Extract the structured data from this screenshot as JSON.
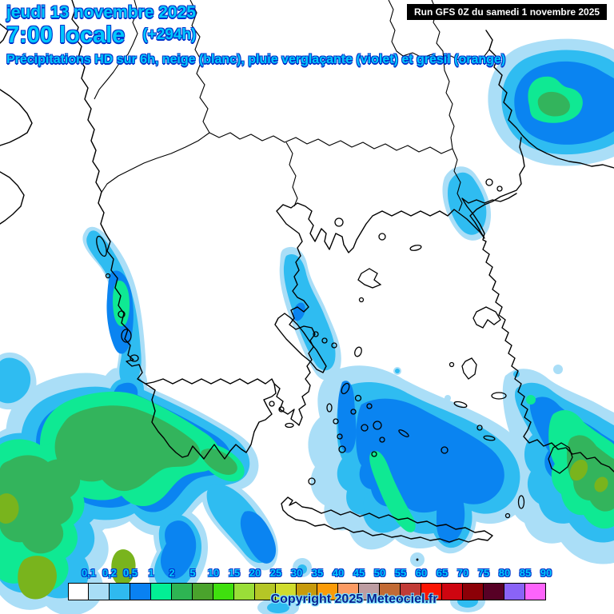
{
  "header": {
    "date_line": "jeudi 13 novembre 2025",
    "time_line": "7:00 locale",
    "offset_label": "(+294h)",
    "subtitle": "Précipitations HD sur 6h, neige (blanc), pluie verglaçante (violet) et grésil (orange)"
  },
  "run_box": {
    "label": "Run GFS 0Z du samedi 1 novembre 2025"
  },
  "legend": {
    "values": [
      "0,1",
      "0,2",
      "0,5",
      "1",
      "2",
      "5",
      "10",
      "15",
      "20",
      "25",
      "30",
      "35",
      "40",
      "45",
      "50",
      "55",
      "60",
      "65",
      "70",
      "75",
      "80",
      "85",
      "90"
    ],
    "colors": [
      "#ffffff",
      "#a8ddf6",
      "#2fb9ef",
      "#0981f2",
      "#02ef95",
      "#2eb453",
      "#4aa32c",
      "#3fe00e",
      "#9ade38",
      "#b5c626",
      "#d0dc2d",
      "#c79a0b",
      "#fb9b07",
      "#fb9b63",
      "#bd9da2",
      "#c26a34",
      "#c13b36",
      "#fb1503",
      "#ce0510",
      "#8c0007",
      "#570025",
      "#8a63f7",
      "#fd64fb"
    ]
  },
  "map": {
    "precip_levels": {
      "pale": "#aadef7",
      "cyan": "#2fbcf1",
      "blue": "#0a84f1",
      "spring": "#0fe993",
      "green": "#33b45c",
      "ygreen": "#79b41d"
    },
    "coastline_color": "#000000",
    "background_color": "#ffffff"
  },
  "footer": {
    "copyright": "Copyright 2025 Meteociel.fr"
  }
}
